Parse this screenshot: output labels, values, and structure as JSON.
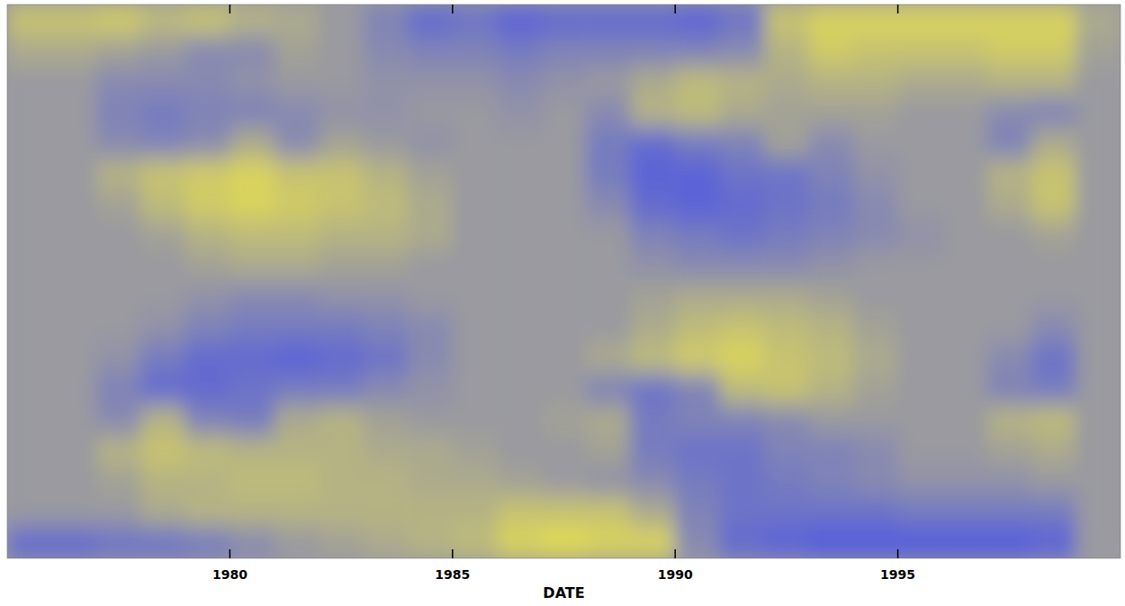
{
  "chart_data": {
    "type": "heatmap",
    "x_label": "DATE",
    "xlim": [
      1975,
      2000
    ],
    "ylim": [
      -90,
      90
    ],
    "xticks": [
      1980,
      1985,
      1990,
      1995
    ],
    "tick_labels": "x",
    "grid": false,
    "zlim": [
      -1,
      1
    ],
    "x_bins": [
      1975,
      1976,
      1977,
      1978,
      1979,
      1980,
      1981,
      1982,
      1983,
      1984,
      1985,
      1986,
      1987,
      1988,
      1989,
      1990,
      1991,
      1992,
      1993,
      1994,
      1995,
      1996,
      1997,
      1998,
      1999,
      2000
    ],
    "y_bins": [
      90,
      80,
      70,
      60,
      50,
      40,
      30,
      20,
      10,
      0,
      -10,
      -20,
      -30,
      -40,
      -50,
      -60,
      -70,
      -80,
      -90
    ],
    "cells": [
      [
        0.5,
        0.5,
        0.6,
        0.4,
        0.5,
        0.3,
        0.2,
        0,
        -0.3,
        -0.6,
        -0.5,
        -0.7,
        -0.6,
        -0.6,
        -0.6,
        -0.7,
        -0.5,
        0.5,
        0.7,
        0.7,
        0.7,
        0.7,
        0.7,
        0.7,
        0.2
      ],
      [
        0.2,
        0.2,
        0.1,
        0,
        -0.2,
        -0.2,
        0.1,
        0,
        -0.2,
        -0.3,
        -0.3,
        -0.4,
        -0.3,
        -0.3,
        -0.3,
        -0.3,
        -0.2,
        0.3,
        0.6,
        0.5,
        0.5,
        0.5,
        0.6,
        0.6,
        0.1
      ],
      [
        0,
        0,
        -0.2,
        -0.2,
        -0.2,
        -0.1,
        0,
        0,
        -0.1,
        -0.1,
        -0.1,
        -0.2,
        -0.1,
        0,
        0.2,
        0.4,
        0.3,
        0.2,
        0.3,
        0.3,
        0.2,
        0.2,
        0.3,
        0.3,
        0
      ],
      [
        0,
        0,
        -0.3,
        -0.4,
        -0.3,
        -0.3,
        -0.2,
        -0.1,
        -0.1,
        0,
        0,
        -0.1,
        0,
        -0.2,
        0.3,
        0.4,
        0.2,
        0.1,
        0.1,
        0.1,
        0,
        0,
        -0.2,
        -0.3,
        0
      ],
      [
        0,
        0,
        -0.2,
        -0.3,
        -0.2,
        0.2,
        -0.2,
        0.1,
        0,
        -0.1,
        0,
        0,
        0,
        -0.4,
        -0.6,
        -0.4,
        -0.3,
        0.1,
        -0.2,
        0,
        0,
        0,
        -0.3,
        0.2,
        0
      ],
      [
        0,
        0,
        0.3,
        0.5,
        0.6,
        0.7,
        0.5,
        0.5,
        0.3,
        0.1,
        0,
        0,
        0,
        -0.4,
        -0.7,
        -0.7,
        -0.5,
        -0.5,
        -0.3,
        -0.1,
        0,
        0,
        0.3,
        0.5,
        0
      ],
      [
        0,
        0,
        0.1,
        0.4,
        0.6,
        0.7,
        0.6,
        0.5,
        0.4,
        0.2,
        0,
        0,
        0,
        -0.2,
        -0.6,
        -0.7,
        -0.6,
        -0.5,
        -0.4,
        -0.2,
        0,
        0,
        0.2,
        0.5,
        0
      ],
      [
        0,
        0,
        0,
        0.1,
        0.3,
        0.4,
        0.4,
        0.3,
        0.3,
        0.2,
        0,
        0,
        0,
        0,
        -0.3,
        -0.4,
        -0.5,
        -0.4,
        -0.3,
        -0.2,
        -0.1,
        0,
        0,
        0.1,
        0
      ],
      [
        0,
        0,
        0,
        0,
        0.1,
        0.2,
        0.2,
        0.1,
        0.1,
        0,
        0,
        0,
        0,
        0,
        -0.1,
        -0.2,
        -0.2,
        -0.2,
        -0.1,
        0,
        0,
        0,
        0,
        0,
        0
      ],
      [
        0,
        0,
        0,
        0,
        -0.1,
        -0.2,
        -0.2,
        -0.1,
        -0.1,
        0,
        0,
        0,
        0,
        0,
        0.1,
        0.2,
        0.2,
        0.2,
        0.1,
        0,
        0,
        0,
        0,
        0,
        0
      ],
      [
        0,
        0,
        0,
        -0.1,
        -0.3,
        -0.4,
        -0.4,
        -0.4,
        -0.3,
        -0.2,
        0,
        0,
        0,
        0,
        0.2,
        0.4,
        0.5,
        0.4,
        0.3,
        0.1,
        0,
        0,
        0,
        -0.2,
        0
      ],
      [
        0,
        0,
        -0.1,
        -0.4,
        -0.6,
        -0.6,
        -0.7,
        -0.6,
        -0.5,
        -0.2,
        0,
        0,
        0,
        0.2,
        0.4,
        0.6,
        0.7,
        0.5,
        0.4,
        0.2,
        0,
        0,
        -0.2,
        -0.5,
        0
      ],
      [
        0,
        0,
        -0.3,
        -0.6,
        -0.6,
        -0.5,
        -0.4,
        -0.4,
        -0.2,
        -0.1,
        0,
        0,
        0,
        -0.3,
        -0.5,
        -0.3,
        0.4,
        0.5,
        0.3,
        0.1,
        0,
        0,
        -0.3,
        -0.4,
        0
      ],
      [
        0,
        0,
        -0.2,
        0.3,
        -0.3,
        -0.4,
        0.2,
        0.3,
        0.1,
        0,
        0,
        0,
        0.1,
        0.2,
        -0.4,
        -0.3,
        -0.3,
        -0.2,
        0,
        0,
        0,
        0,
        0.3,
        0.4,
        0
      ],
      [
        0,
        0,
        0.3,
        0.5,
        0.4,
        0.3,
        0.3,
        0.3,
        0.2,
        0.2,
        0.1,
        0,
        0,
        0.1,
        -0.4,
        -0.5,
        -0.5,
        -0.3,
        -0.3,
        -0.2,
        0,
        0,
        0.1,
        0.2,
        0
      ],
      [
        0,
        0,
        0.1,
        0.3,
        0.3,
        0.4,
        0.4,
        0.3,
        0.3,
        0.2,
        0.2,
        0.1,
        0,
        -0.1,
        -0.2,
        -0.4,
        -0.5,
        -0.4,
        -0.3,
        -0.2,
        -0.1,
        -0.1,
        -0.1,
        0,
        0
      ],
      [
        0,
        0,
        0,
        0.2,
        0.3,
        0.3,
        0.3,
        0.3,
        0.3,
        0.3,
        0.3,
        0.5,
        0.5,
        0.5,
        0.2,
        -0.3,
        -0.5,
        -0.5,
        -0.5,
        -0.5,
        -0.4,
        -0.4,
        -0.4,
        -0.4,
        0
      ],
      [
        -0.6,
        -0.6,
        -0.5,
        -0.5,
        -0.4,
        -0.2,
        0,
        0.1,
        0.2,
        0.3,
        0.4,
        0.7,
        0.8,
        0.7,
        0.7,
        -0.2,
        -0.6,
        -0.7,
        -0.8,
        -0.8,
        -0.8,
        -0.8,
        -0.8,
        -0.7,
        0
      ]
    ]
  }
}
